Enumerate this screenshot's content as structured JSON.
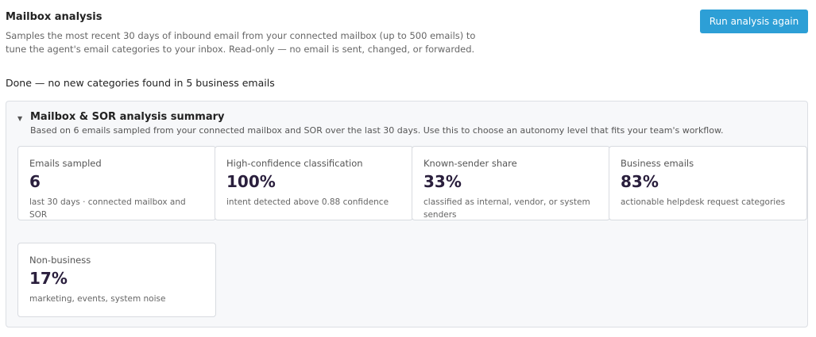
{
  "header": {
    "title": "Mailbox analysis",
    "description": "Samples the most recent 30 days of inbound email from your connected mailbox (up to 500 emails) to tune the agent's email categories to your inbox. Read-only — no email is sent, changed, or forwarded.",
    "button": "Run analysis again"
  },
  "status": "Done — no new categories found in 5 business emails",
  "summary": {
    "title": "Mailbox & SOR analysis summary",
    "subtitle": "Based on 6 emails sampled from your connected mailbox and SOR over the last 30 days. Use this to choose an autonomy level that fits your team's workflow.",
    "cards": [
      {
        "label": "Emails sampled",
        "value": "6",
        "note": "last 30 days · connected mailbox and SOR"
      },
      {
        "label": "High-confidence classification",
        "value": "100%",
        "note": "intent detected above 0.88 confidence"
      },
      {
        "label": "Known-sender share",
        "value": "33%",
        "note": "classified as internal, vendor, or system senders"
      },
      {
        "label": "Business emails",
        "value": "83%",
        "note": "actionable helpdesk request categories"
      },
      {
        "label": "Non-business",
        "value": "17%",
        "note": "marketing, events, system noise"
      }
    ]
  }
}
